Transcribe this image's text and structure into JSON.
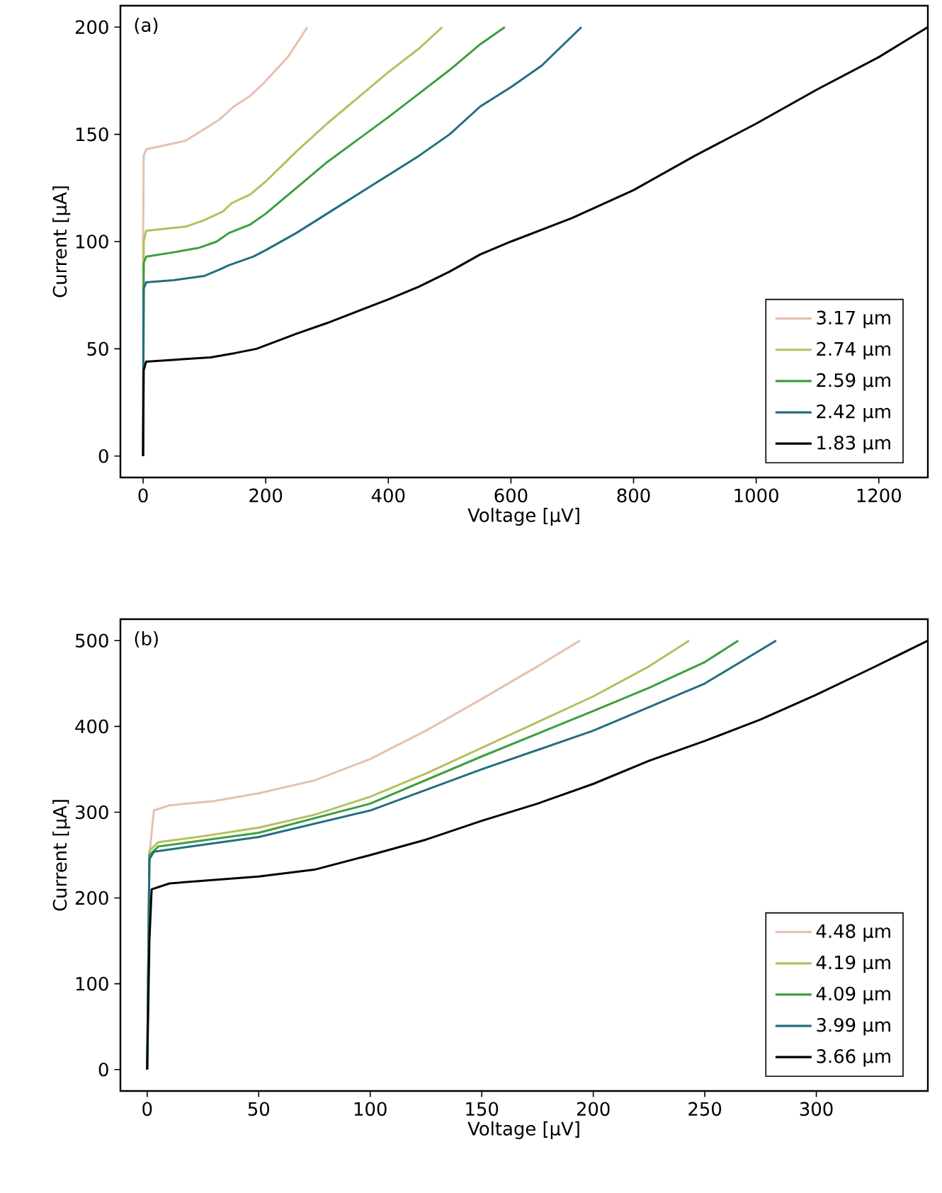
{
  "chart_data": [
    {
      "type": "line",
      "xlabel": "Voltage [µV]",
      "ylabel": "Current [µA]",
      "annotations": [
        "(a)"
      ],
      "xlim": [
        -37,
        1280
      ],
      "ylim": [
        -10,
        210
      ],
      "xticks": [
        0,
        200,
        400,
        600,
        800,
        1000,
        1200
      ],
      "yticks": [
        0,
        50,
        100,
        150,
        200
      ],
      "legend": "bottom right",
      "series": [
        {
          "name": "3.17 µm",
          "color": "#e5c1b0",
          "x": [
            0,
            0,
            1,
            5,
            69,
            103,
            125,
            148,
            175,
            197,
            236,
            268
          ],
          "values": [
            0,
            100,
            140,
            143,
            147,
            153,
            157,
            163,
            168,
            174,
            186,
            200
          ]
        },
        {
          "name": "2.74 µm",
          "color": "#b5bf5e",
          "x": [
            0,
            1,
            5,
            70,
            100,
            130,
            145,
            175,
            200,
            250,
            300,
            350,
            400,
            450,
            488
          ],
          "values": [
            0,
            100,
            105,
            107,
            110,
            114,
            118,
            122,
            128,
            142,
            155,
            167,
            179,
            190,
            200
          ]
        },
        {
          "name": "2.59 µm",
          "color": "#3d9e3e",
          "x": [
            0,
            1,
            5,
            50,
            90,
            120,
            140,
            175,
            200,
            250,
            300,
            400,
            450,
            500,
            550,
            590
          ],
          "values": [
            0,
            90,
            93,
            95,
            97,
            100,
            104,
            108,
            113,
            125,
            137,
            158,
            169,
            180,
            192,
            200
          ]
        },
        {
          "name": "2.42 µm",
          "color": "#236e80",
          "x": [
            0,
            1,
            5,
            50,
            100,
            125,
            140,
            180,
            200,
            250,
            300,
            400,
            450,
            500,
            550,
            600,
            650,
            715
          ],
          "values": [
            0,
            78,
            81,
            82,
            84,
            87,
            89,
            93,
            96,
            104,
            113,
            131,
            140,
            150,
            163,
            172,
            182,
            200
          ]
        },
        {
          "name": "1.83 µm",
          "color": "#000000",
          "x": [
            0,
            1,
            5,
            110,
            150,
            185,
            250,
            300,
            400,
            450,
            500,
            550,
            600,
            700,
            800,
            900,
            1000,
            1100,
            1200,
            1280
          ],
          "values": [
            0,
            40,
            44,
            46,
            48,
            50,
            57,
            62,
            73,
            79,
            86,
            94,
            100,
            111,
            124,
            140,
            155,
            171,
            186,
            200
          ]
        }
      ]
    },
    {
      "type": "line",
      "xlabel": "Voltage [µV]",
      "ylabel": "Current [µA]",
      "annotations": [
        "(b)"
      ],
      "xlim": [
        -12,
        350
      ],
      "ylim": [
        -25,
        525
      ],
      "xticks": [
        0,
        50,
        100,
        150,
        200,
        250,
        300
      ],
      "yticks": [
        0,
        100,
        200,
        300,
        400,
        500
      ],
      "legend": "bottom right",
      "series": [
        {
          "name": "4.48 µm",
          "color": "#e5c1b0",
          "x": [
            0,
            1,
            3,
            10,
            30,
            50,
            75,
            100,
            125,
            150,
            175,
            194
          ],
          "values": [
            0,
            250,
            302,
            308,
            313,
            322,
            337,
            362,
            395,
            432,
            470,
            500
          ]
        },
        {
          "name": "4.19 µm",
          "color": "#b5bf5e",
          "x": [
            0,
            1,
            5,
            25,
            50,
            75,
            100,
            125,
            150,
            175,
            200,
            225,
            243
          ],
          "values": [
            0,
            255,
            265,
            272,
            282,
            297,
            318,
            345,
            375,
            405,
            435,
            470,
            500
          ]
        },
        {
          "name": "4.09 µm",
          "color": "#3d9e3e",
          "x": [
            0,
            1,
            5,
            50,
            100,
            150,
            200,
            225,
            250,
            265
          ],
          "values": [
            0,
            250,
            260,
            276,
            310,
            365,
            418,
            445,
            475,
            500
          ]
        },
        {
          "name": "3.99 µm",
          "color": "#236e80",
          "x": [
            0,
            1,
            3,
            50,
            100,
            150,
            200,
            250,
            282
          ],
          "values": [
            0,
            245,
            254,
            271,
            302,
            350,
            395,
            450,
            500
          ]
        },
        {
          "name": "3.66 µm",
          "color": "#000000",
          "x": [
            0,
            1,
            2,
            10,
            50,
            75,
            100,
            125,
            150,
            175,
            200,
            225,
            250,
            275,
            300,
            325,
            350
          ],
          "values": [
            0,
            150,
            210,
            217,
            225,
            233,
            250,
            268,
            290,
            310,
            333,
            360,
            383,
            408,
            437,
            468,
            500
          ]
        }
      ]
    }
  ]
}
